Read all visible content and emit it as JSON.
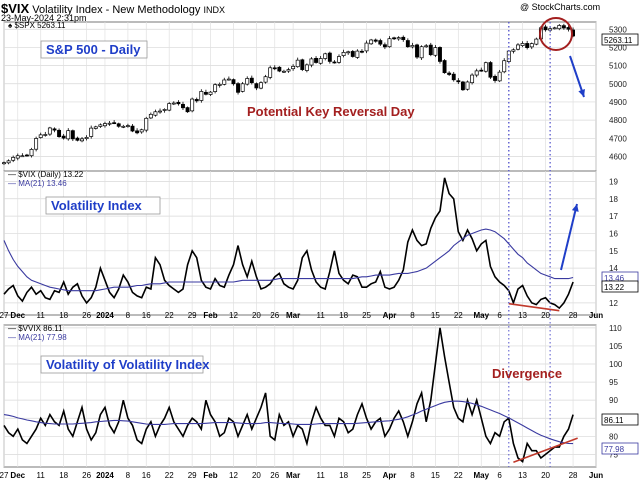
{
  "header": {
    "symbol": "$VIX",
    "description": "Volatility Index - New Methodology",
    "exchange": "INDX",
    "date": "23-May-2024 2:31pm",
    "watermark": "@ StockCharts.com"
  },
  "chart_data": [
    {
      "type": "candlestick",
      "panel": "S&P 500 - Daily",
      "legend": "$SPX 5263.11",
      "title": "S&P 500 - Daily",
      "annotation": "Potential Key Reversal Day",
      "last_value": "5263.11",
      "ylim": [
        4520,
        5340
      ],
      "yticks": [
        4600,
        4700,
        4800,
        4900,
        5000,
        5100,
        5200,
        5300
      ],
      "closes": [
        4566,
        4576,
        4595,
        4604,
        4604,
        4607,
        4639,
        4699,
        4719,
        4721,
        4757,
        4745,
        4709,
        4701,
        4742,
        4697,
        4689,
        4697,
        4705,
        4756,
        4763,
        4774,
        4781,
        4783,
        4784,
        4766,
        4766,
        4770,
        4740,
        4730,
        4747,
        4810,
        4832,
        4846,
        4850,
        4859,
        4891,
        4894,
        4890,
        4868,
        4846,
        4916,
        4906,
        4958,
        4942,
        4954,
        4995,
        4997,
        5021,
        5026,
        5000,
        4953,
        5000,
        5029,
        5006,
        4977,
        5006,
        5039,
        5088,
        5087,
        5070,
        5069,
        5078,
        5096,
        5130,
        5078,
        5104,
        5137,
        5117,
        5139,
        5165,
        5123,
        5117,
        5150,
        5173,
        5176,
        5150,
        5180,
        5178,
        5224,
        5241,
        5234,
        5218,
        5203,
        5248,
        5249,
        5254,
        5243,
        5204,
        5211,
        5147,
        5204,
        5209,
        5160,
        5199,
        5123,
        5061,
        5051,
        5022,
        5011,
        4967,
        5010,
        5048,
        5071,
        5072,
        5116,
        5036,
        5018,
        5064,
        5127,
        5180,
        5187,
        5214,
        5222,
        5199,
        5221,
        5246,
        5308,
        5297,
        5303,
        5308,
        5321,
        5307,
        5300,
        5263
      ]
    },
    {
      "type": "line",
      "panel": "Volatility Index",
      "title": "Volatility Index",
      "legend": [
        "$VIX (Daily) 13.22",
        "MA(21) 13.46"
      ],
      "last_values": [
        "13.46",
        "13.22"
      ],
      "ylim": [
        11.3,
        19.6
      ],
      "yticks": [
        12,
        13,
        14,
        15,
        16,
        17,
        18,
        19
      ],
      "series": [
        {
          "name": "$VIX (Daily)",
          "color": "#000000",
          "values": [
            12.5,
            12.8,
            13.0,
            12.4,
            12.1,
            12.6,
            12.9,
            12.5,
            12.7,
            12.3,
            12.2,
            12.7,
            12.6,
            13.2,
            12.5,
            12.9,
            13.1,
            12.4,
            12.0,
            12.3,
            12.9,
            14.0,
            13.3,
            12.6,
            12.3,
            12.8,
            13.6,
            13.2,
            12.6,
            12.4,
            12.3,
            12.9,
            12.8,
            14.6,
            14.2,
            13.3,
            13.0,
            12.8,
            12.6,
            12.8,
            14.2,
            15.0,
            14.6,
            13.3,
            12.9,
            12.8,
            13.4,
            13.0,
            12.9,
            13.6,
            14.2,
            15.3,
            14.2,
            13.5,
            14.4,
            13.5,
            12.8,
            12.9,
            13.1,
            13.5,
            13.7,
            13.1,
            12.9,
            12.8,
            13.3,
            14.6,
            15.0,
            13.9,
            13.2,
            12.9,
            12.8,
            13.8,
            15.0,
            13.7,
            13.3,
            13.1,
            13.6,
            13.5,
            12.9,
            12.9,
            13.1,
            13.2,
            13.8,
            12.9,
            12.8,
            12.9,
            13.3,
            13.9,
            15.5,
            16.2,
            15.6,
            15.3,
            15.4,
            16.3,
            16.9,
            17.3,
            19.2,
            18.3,
            18.0,
            16.1,
            15.6,
            16.2,
            15.7,
            15.0,
            15.4,
            15.6,
            14.1,
            13.5,
            13.2,
            13.0,
            12.7,
            12.0,
            12.8,
            13.0,
            12.4,
            12.0,
            11.9,
            12.2,
            12.3,
            12.0,
            11.9,
            11.7,
            12.0,
            12.5,
            13.2
          ]
        },
        {
          "name": "MA(21)",
          "color": "#3a3aa0",
          "values": [
            15.6,
            15.0,
            14.5,
            14.1,
            13.8,
            13.5,
            13.3,
            13.2,
            13.1,
            13.0,
            12.9,
            12.85,
            12.8,
            12.75,
            12.7,
            12.7,
            12.7,
            12.7,
            12.7,
            12.7,
            12.7,
            12.75,
            12.8,
            12.85,
            12.9,
            12.9,
            12.9,
            12.9,
            12.95,
            13.0,
            13.0,
            13.05,
            13.1,
            13.1,
            13.1,
            13.15,
            13.2,
            13.2,
            13.2,
            13.2,
            13.2,
            13.2,
            13.2,
            13.2,
            13.2,
            13.2,
            13.2,
            13.2,
            13.2,
            13.2,
            13.2,
            13.25,
            13.3,
            13.3,
            13.3,
            13.3,
            13.3,
            13.3,
            13.3,
            13.35,
            13.4,
            13.4,
            13.4,
            13.4,
            13.4,
            13.4,
            13.4,
            13.4,
            13.4,
            13.4,
            13.4,
            13.4,
            13.4,
            13.4,
            13.4,
            13.4,
            13.4,
            13.45,
            13.5,
            13.5,
            13.55,
            13.6,
            13.6,
            13.6,
            13.6,
            13.65,
            13.7,
            13.7,
            13.7,
            13.75,
            13.8,
            13.9,
            14.0,
            14.2,
            14.4,
            14.6,
            14.8,
            15.0,
            15.3,
            15.5,
            15.7,
            15.9,
            16.0,
            16.1,
            16.2,
            16.25,
            16.2,
            16.1,
            15.9,
            15.7,
            15.4,
            15.1,
            14.8,
            14.6,
            14.3,
            14.1,
            13.9,
            13.7,
            13.6,
            13.5,
            13.4,
            13.4,
            13.4,
            13.4,
            13.46
          ]
        }
      ],
      "vertical_markers_index": [
        110,
        119
      ]
    },
    {
      "type": "line",
      "panel": "Volatility of Volatility Index",
      "title": "Volatility of Volatility Index",
      "annotation": "Divergence",
      "legend": [
        "$VVIX 86.11",
        "MA(21) 77.98"
      ],
      "last_values": [
        "86.11",
        "77.98"
      ],
      "ylim": [
        71.5,
        110.8
      ],
      "yticks": [
        75,
        80,
        85,
        90,
        95,
        100,
        105,
        110
      ],
      "series": [
        {
          "name": "$VVIX",
          "color": "#000000",
          "values": [
            83,
            81,
            80,
            82,
            79,
            78,
            80,
            82,
            85,
            83,
            86,
            84,
            83,
            87,
            82,
            80,
            84,
            88,
            82,
            79,
            81,
            86,
            88,
            83,
            81,
            84,
            90,
            85,
            83,
            79,
            78,
            82,
            84,
            80,
            83,
            85,
            88,
            84,
            82,
            80,
            83,
            85,
            84,
            82,
            90,
            86,
            84,
            80,
            81,
            85,
            84,
            80,
            83,
            86,
            82,
            85,
            88,
            92,
            80,
            79,
            86,
            83,
            84,
            80,
            83,
            82,
            78,
            84,
            88,
            85,
            83,
            83,
            80,
            85,
            84,
            81,
            82,
            86,
            89,
            85,
            82,
            84,
            85,
            80,
            82,
            85,
            87,
            84,
            80,
            84,
            89,
            92,
            84,
            90,
            100,
            110,
            102,
            95,
            88,
            85,
            84,
            90,
            86,
            90,
            85,
            80,
            78,
            81,
            80,
            84,
            85,
            78,
            74,
            73,
            78,
            76,
            76,
            74,
            75,
            76,
            77,
            77,
            80,
            82,
            86
          ]
        },
        {
          "name": "MA(21)",
          "color": "#3a3aa0",
          "values": [
            86.0,
            85.8,
            85.5,
            85.1,
            84.8,
            84.5,
            84.3,
            84.0,
            83.8,
            83.6,
            83.5,
            83.4,
            83.4,
            83.4,
            83.4,
            83.4,
            83.5,
            83.6,
            83.7,
            83.8,
            84.0,
            84.1,
            84.2,
            84.3,
            84.4,
            84.4,
            84.3,
            84.2,
            84.0,
            83.8,
            83.6,
            83.4,
            83.3,
            83.3,
            83.3,
            83.3,
            83.4,
            83.5,
            83.5,
            83.5,
            83.5,
            83.5,
            83.5,
            83.5,
            83.6,
            83.7,
            83.8,
            83.8,
            83.8,
            83.8,
            83.8,
            83.7,
            83.6,
            83.5,
            83.5,
            83.5,
            83.6,
            83.8,
            83.8,
            83.7,
            83.6,
            83.5,
            83.5,
            83.4,
            83.3,
            83.3,
            83.3,
            83.3,
            83.4,
            83.5,
            83.5,
            83.5,
            83.5,
            83.5,
            83.5,
            83.5,
            83.5,
            83.6,
            83.7,
            83.8,
            83.9,
            84.0,
            84.1,
            84.2,
            84.3,
            84.5,
            84.7,
            85.0,
            85.4,
            85.9,
            86.4,
            87.0,
            87.5,
            88.0,
            88.5,
            89.0,
            89.4,
            89.6,
            89.7,
            89.7,
            89.6,
            89.4,
            89.1,
            88.7,
            88.3,
            87.8,
            87.3,
            86.8,
            86.3,
            85.7,
            85.1,
            84.4,
            83.7,
            83.0,
            82.3,
            81.6,
            80.9,
            80.3,
            79.8,
            79.3,
            78.9,
            78.5,
            78.2,
            78.0,
            77.98
          ]
        }
      ],
      "vertical_markers_index": [
        110,
        119
      ]
    }
  ],
  "x_axis": {
    "tick_labels": [
      "27",
      "Dec",
      "11",
      "18",
      "26",
      "2024",
      "8",
      "16",
      "22",
      "29",
      "Feb",
      "12",
      "20",
      "26",
      "Mar",
      "11",
      "18",
      "25",
      "Apr",
      "8",
      "15",
      "22",
      "May",
      "6",
      "13",
      "20",
      "28",
      "Jun"
    ],
    "tick_index": [
      0,
      3,
      8,
      13,
      18,
      22,
      27,
      31,
      36,
      41,
      45,
      50,
      55,
      59,
      63,
      69,
      74,
      79,
      84,
      89,
      94,
      99,
      104,
      108,
      113,
      118,
      124,
      129
    ],
    "bold_labels": [
      "Dec",
      "2024",
      "Feb",
      "Mar",
      "Apr",
      "May",
      "Jun"
    ]
  }
}
